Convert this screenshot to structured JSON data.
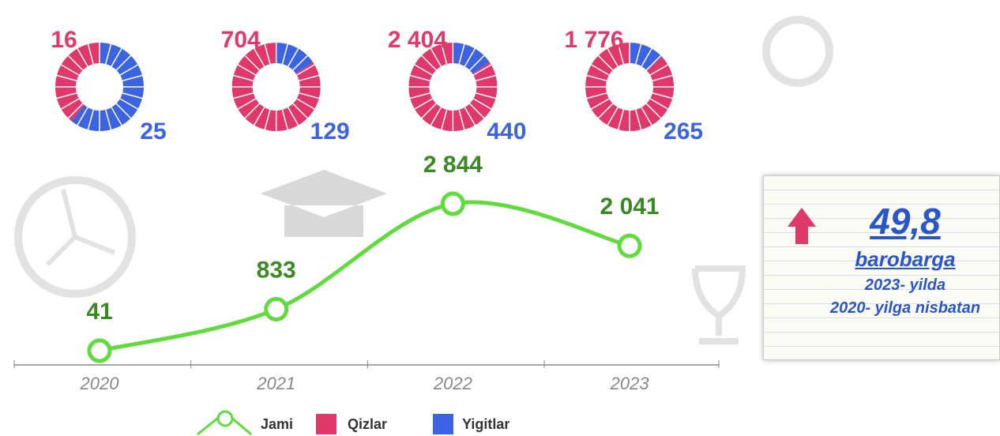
{
  "chart_data": [
    {
      "type": "donut",
      "categories": [
        "2020",
        "2021",
        "2022",
        "2023"
      ],
      "series": [
        {
          "name": "Qizlar",
          "color": "#e0386a",
          "values": [
            16,
            704,
            2404,
            1776
          ],
          "value_labels": [
            "16",
            "704",
            "2 404",
            "1 776"
          ]
        },
        {
          "name": "Yigitlar",
          "color": "#3c63e0",
          "values": [
            25,
            129,
            440,
            265
          ]
        }
      ]
    },
    {
      "type": "line",
      "categories": [
        "2020",
        "2021",
        "2022",
        "2023"
      ],
      "series": [
        {
          "name": "Jami",
          "color": "#5fdc3c",
          "values": [
            41,
            833,
            2844,
            2041
          ],
          "value_labels": [
            "41",
            "833",
            "2 844",
            "2 041"
          ]
        }
      ]
    }
  ],
  "note": {
    "value": "49,8",
    "unit": "barobarga",
    "line1": "2023- yilda",
    "line2": "2020- yilga nisbatan"
  }
}
